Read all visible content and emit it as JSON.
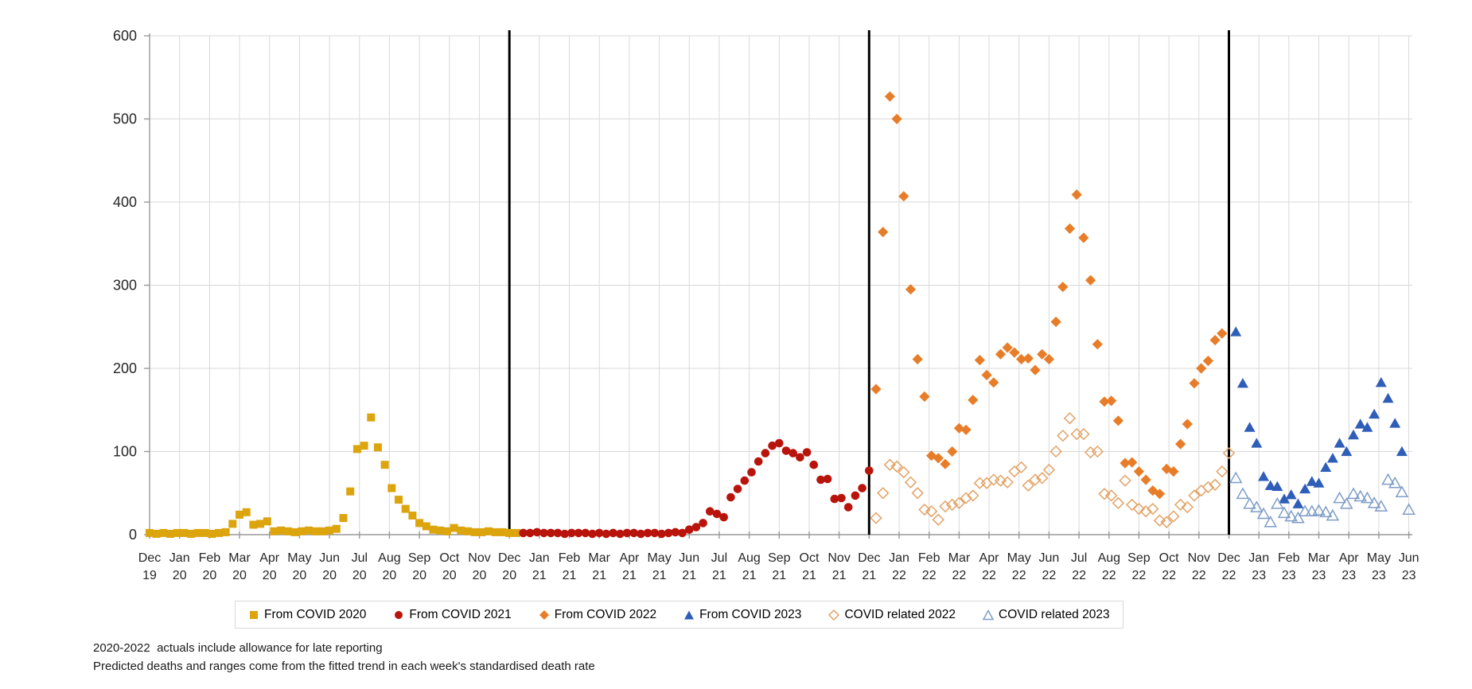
{
  "page": {
    "background": "#FFFFFF"
  },
  "footnotes": {
    "line1": "2020-2022  actuals include allowance for late reporting",
    "line2": "Predicted deaths and ranges come from the fitted trend in each week's standardised death rate"
  },
  "legend": {
    "items": [
      {
        "label": "From COVID 2020",
        "marker": "square",
        "filled": true,
        "color": "#DCA40D"
      },
      {
        "label": "From COVID 2021",
        "marker": "circle",
        "filled": true,
        "color": "#B9140C"
      },
      {
        "label": "From COVID 2022",
        "marker": "diamond",
        "filled": true,
        "color": "#E87D29"
      },
      {
        "label": "From COVID 2023",
        "marker": "triangle",
        "filled": true,
        "color": "#2F5EB8"
      },
      {
        "label": "COVID related 2022",
        "marker": "diamond",
        "filled": false,
        "color": "#E2A264"
      },
      {
        "label": "COVID related 2023",
        "marker": "triangle",
        "filled": false,
        "color": "#7E9DC8"
      }
    ]
  },
  "chart_data": {
    "type": "scatter",
    "title": "",
    "xlabel": "",
    "ylabel": "",
    "x_unit": "weekly points, weeks since 1 Dec 2019",
    "ylim": [
      0,
      600
    ],
    "grid": true,
    "legend_position": "bottom",
    "y_ticks": [
      0,
      100,
      200,
      300,
      400,
      500,
      600
    ],
    "x_tick_labels": [
      "Dec 19",
      "Jan 20",
      "Feb 20",
      "Mar 20",
      "Apr 20",
      "May 20",
      "Jun 20",
      "Jul 20",
      "Aug 20",
      "Sep 20",
      "Oct 20",
      "Nov 20",
      "Dec 20",
      "Jan 21",
      "Feb 21",
      "Mar 21",
      "Apr 21",
      "May 21",
      "Jun 21",
      "Jul 21",
      "Aug 21",
      "Sep 21",
      "Oct 21",
      "Nov 21",
      "Dec 21",
      "Jan 22",
      "Feb 22",
      "Mar 22",
      "Apr 22",
      "May 22",
      "Jun 22",
      "Jul 22",
      "Aug 22",
      "Sep 22",
      "Oct 22",
      "Nov 22",
      "Dec 22",
      "Jan 23",
      "Feb 23",
      "Mar 23",
      "Apr 23",
      "May 23",
      "Jun 23"
    ],
    "year_separator_month_indices": [
      12,
      24,
      36
    ],
    "axis_color": "#999999",
    "grid_color": "#D9D9D9",
    "separator_color": "#000000",
    "tick_label_color": "#262626",
    "series": [
      {
        "name": "From COVID 2020",
        "marker": "square",
        "filled": true,
        "color": "#DCA40D",
        "start_week": 0,
        "values": [
          2,
          1,
          2,
          1,
          2,
          2,
          1,
          2,
          2,
          1,
          2,
          3,
          13,
          24,
          27,
          12,
          13,
          16,
          4,
          5,
          4,
          3,
          4,
          5,
          4,
          4,
          5,
          7,
          20,
          52,
          103,
          107,
          141,
          105,
          84,
          56,
          42,
          31,
          23,
          14,
          10,
          6,
          5,
          4,
          8,
          5,
          4,
          3,
          3,
          4,
          3,
          3,
          2,
          2
        ]
      },
      {
        "name": "From COVID 2021",
        "marker": "circle",
        "filled": true,
        "color": "#B9140C",
        "start_week": 54,
        "values": [
          2,
          2,
          3,
          2,
          2,
          2,
          1,
          2,
          2,
          2,
          1,
          2,
          1,
          2,
          1,
          2,
          2,
          1,
          2,
          2,
          1,
          2,
          3,
          2,
          6,
          9,
          14,
          28,
          25,
          21,
          45,
          55,
          65,
          75,
          88,
          98,
          107,
          110,
          101,
          98,
          93,
          99,
          84,
          66,
          67,
          43,
          44,
          33,
          47,
          56,
          77
        ]
      },
      {
        "name": "From COVID 2022",
        "marker": "diamond",
        "filled": true,
        "color": "#E87D29",
        "start_week": 105,
        "values": [
          175,
          364,
          527,
          500,
          407,
          295,
          211,
          166,
          95,
          92,
          85,
          100,
          128,
          126,
          162,
          210,
          192,
          183,
          217,
          225,
          219,
          211,
          212,
          198,
          217,
          211,
          256,
          298,
          368,
          409,
          357,
          306,
          229,
          160,
          161,
          137,
          86,
          87,
          76,
          66,
          53,
          49,
          79,
          76,
          109,
          133,
          182,
          200,
          209,
          234,
          242
        ]
      },
      {
        "name": "From COVID 2023",
        "marker": "triangle",
        "filled": true,
        "color": "#2F5EB8",
        "start_week": 157,
        "values": [
          244,
          182,
          129,
          110,
          70,
          59,
          58,
          43,
          48,
          37,
          55,
          64,
          62,
          81,
          92,
          110,
          100,
          120,
          133,
          129,
          145,
          183,
          164,
          134,
          100
        ]
      },
      {
        "name": "COVID related 2022",
        "marker": "diamond",
        "filled": false,
        "color": "#E2A264",
        "start_week": 105,
        "values": [
          20,
          50,
          84,
          82,
          75,
          63,
          50,
          30,
          28,
          18,
          34,
          36,
          38,
          44,
          47,
          62,
          62,
          66,
          65,
          63,
          76,
          81,
          59,
          66,
          68,
          78,
          100,
          119,
          140,
          121,
          121,
          99,
          100,
          49,
          47,
          38,
          65,
          36,
          31,
          28,
          31,
          17,
          15,
          22,
          36,
          33,
          47,
          53,
          57,
          60,
          76,
          98
        ]
      },
      {
        "name": "COVID related 2023",
        "marker": "triangle",
        "filled": false,
        "color": "#7E9DC8",
        "start_week": 157,
        "values": [
          68,
          49,
          37,
          33,
          25,
          15,
          37,
          26,
          22,
          20,
          28,
          28,
          29,
          27,
          23,
          44,
          37,
          49,
          46,
          44,
          38,
          34,
          66,
          62,
          51,
          30
        ]
      }
    ]
  }
}
